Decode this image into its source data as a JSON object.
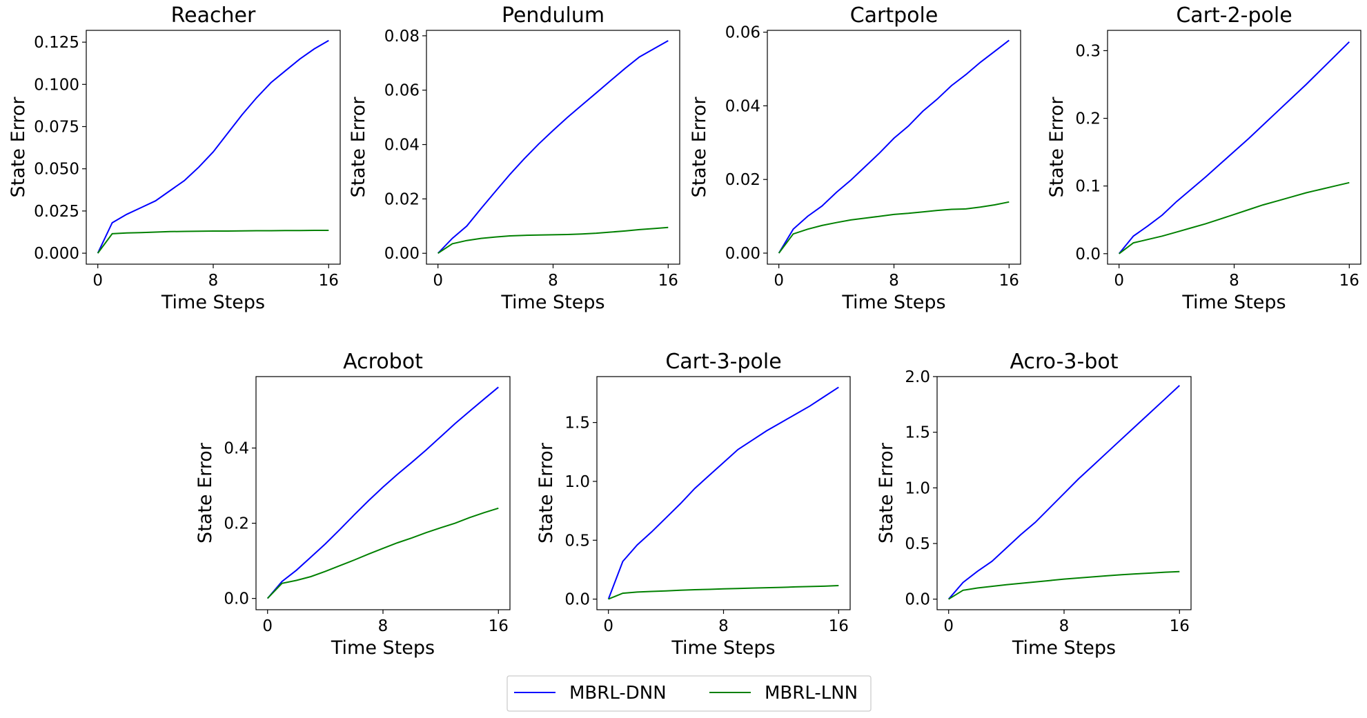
{
  "legend": {
    "placement": "bottom-center",
    "entries": [
      {
        "label": "MBRL-DNN",
        "color": "#0000ff"
      },
      {
        "label": "MBRL-LNN",
        "color": "#008000"
      }
    ]
  },
  "chart_data": [
    {
      "type": "line",
      "title": "Reacher",
      "xlabel": "Time Steps",
      "ylabel": "State Error",
      "xlim": [
        -0.8,
        16.8
      ],
      "ylim": [
        -0.0065,
        0.132
      ],
      "xticks": [
        0,
        8,
        16
      ],
      "xtick_labels": [
        "0",
        "8",
        "16"
      ],
      "yticks": [
        0,
        0.025,
        0.05,
        0.075,
        0.1,
        0.125
      ],
      "ytick_labels": [
        "0.000",
        "0.025",
        "0.050",
        "0.075",
        "0.100",
        "0.125"
      ],
      "x": [
        0,
        1,
        2,
        3,
        4,
        5,
        6,
        7,
        8,
        9,
        10,
        11,
        12,
        13,
        14,
        15,
        16
      ],
      "series": [
        {
          "name": "MBRL-DNN",
          "color": "#0000ff",
          "values": [
            0,
            0.018,
            0.023,
            0.027,
            0.031,
            0.037,
            0.043,
            0.051,
            0.06,
            0.071,
            0.082,
            0.092,
            0.101,
            0.108,
            0.115,
            0.121,
            0.126
          ]
        },
        {
          "name": "MBRL-LNN",
          "color": "#008000",
          "values": [
            0,
            0.0115,
            0.012,
            0.0122,
            0.0125,
            0.0128,
            0.0129,
            0.013,
            0.0131,
            0.0131,
            0.0132,
            0.0133,
            0.0133,
            0.0134,
            0.0134,
            0.0135,
            0.0135
          ]
        }
      ]
    },
    {
      "type": "line",
      "title": "Pendulum",
      "xlabel": "Time Steps",
      "ylabel": "State Error",
      "xlim": [
        -0.8,
        16.8
      ],
      "ylim": [
        -0.004,
        0.082
      ],
      "xticks": [
        0,
        8,
        16
      ],
      "xtick_labels": [
        "0",
        "8",
        "16"
      ],
      "yticks": [
        0,
        0.02,
        0.04,
        0.06,
        0.08
      ],
      "ytick_labels": [
        "0.00",
        "0.02",
        "0.04",
        "0.06",
        "0.08"
      ],
      "x": [
        0,
        1,
        2,
        3,
        4,
        5,
        6,
        7,
        8,
        9,
        10,
        11,
        12,
        13,
        14,
        15,
        16
      ],
      "series": [
        {
          "name": "MBRL-DNN",
          "color": "#0000ff",
          "values": [
            0,
            0.0055,
            0.01,
            0.0165,
            0.0228,
            0.029,
            0.0348,
            0.0402,
            0.0452,
            0.05,
            0.0545,
            0.059,
            0.0635,
            0.068,
            0.0722,
            0.0752,
            0.0782
          ]
        },
        {
          "name": "MBRL-LNN",
          "color": "#008000",
          "values": [
            0,
            0.0035,
            0.0047,
            0.0055,
            0.006,
            0.0064,
            0.0066,
            0.0067,
            0.0068,
            0.0069,
            0.0071,
            0.0074,
            0.0078,
            0.0082,
            0.0087,
            0.0091,
            0.0095
          ]
        }
      ]
    },
    {
      "type": "line",
      "title": "Cartpole",
      "xlabel": "Time Steps",
      "ylabel": "State Error",
      "xlim": [
        -0.8,
        16.8
      ],
      "ylim": [
        -0.003,
        0.0605
      ],
      "xticks": [
        0,
        8,
        16
      ],
      "xtick_labels": [
        "0",
        "8",
        "16"
      ],
      "yticks": [
        0,
        0.02,
        0.04,
        0.06
      ],
      "ytick_labels": [
        "0.00",
        "0.02",
        "0.04",
        "0.06"
      ],
      "x": [
        0,
        1,
        2,
        3,
        4,
        5,
        6,
        7,
        8,
        9,
        10,
        11,
        12,
        13,
        14,
        15,
        16
      ],
      "series": [
        {
          "name": "MBRL-DNN",
          "color": "#0000ff",
          "values": [
            0,
            0.0065,
            0.01,
            0.0128,
            0.0165,
            0.0198,
            0.0235,
            0.0272,
            0.0312,
            0.0345,
            0.0385,
            0.0418,
            0.0455,
            0.0485,
            0.0518,
            0.0548,
            0.0578
          ]
        },
        {
          "name": "MBRL-LNN",
          "color": "#008000",
          "values": [
            0,
            0.0052,
            0.0065,
            0.0075,
            0.0083,
            0.009,
            0.0095,
            0.01,
            0.0105,
            0.0108,
            0.0112,
            0.0116,
            0.0119,
            0.012,
            0.0125,
            0.0131,
            0.0139
          ]
        }
      ]
    },
    {
      "type": "line",
      "title": "Cart-2-pole",
      "xlabel": "Time Steps",
      "ylabel": "State Error",
      "xlim": [
        -0.8,
        16.8
      ],
      "ylim": [
        -0.0155,
        0.33
      ],
      "xticks": [
        0,
        8,
        16
      ],
      "xtick_labels": [
        "0",
        "8",
        "16"
      ],
      "yticks": [
        0,
        0.1,
        0.2,
        0.3
      ],
      "ytick_labels": [
        "0.0",
        "0.1",
        "0.2",
        "0.3"
      ],
      "x": [
        0,
        1,
        2,
        3,
        4,
        5,
        6,
        7,
        8,
        9,
        10,
        11,
        12,
        13,
        14,
        15,
        16
      ],
      "series": [
        {
          "name": "MBRL-DNN",
          "color": "#0000ff",
          "values": [
            0,
            0.026,
            0.041,
            0.057,
            0.077,
            0.095,
            0.113,
            0.132,
            0.151,
            0.17,
            0.19,
            0.21,
            0.23,
            0.25,
            0.271,
            0.292,
            0.313
          ]
        },
        {
          "name": "MBRL-LNN",
          "color": "#008000",
          "values": [
            0,
            0.016,
            0.021,
            0.026,
            0.032,
            0.038,
            0.044,
            0.051,
            0.058,
            0.065,
            0.072,
            0.078,
            0.084,
            0.09,
            0.095,
            0.1,
            0.105
          ]
        }
      ]
    },
    {
      "type": "line",
      "title": "Acrobot",
      "xlabel": "Time Steps",
      "ylabel": "State Error",
      "xlim": [
        -0.8,
        16.8
      ],
      "ylim": [
        -0.03,
        0.59
      ],
      "xticks": [
        0,
        8,
        16
      ],
      "xtick_labels": [
        "0",
        "8",
        "16"
      ],
      "yticks": [
        0,
        0.2,
        0.4
      ],
      "ytick_labels": [
        "0.0",
        "0.2",
        "0.4"
      ],
      "x": [
        0,
        1,
        2,
        3,
        4,
        5,
        6,
        7,
        8,
        9,
        10,
        11,
        12,
        13,
        14,
        15,
        16
      ],
      "series": [
        {
          "name": "MBRL-DNN",
          "color": "#0000ff",
          "values": [
            0,
            0.045,
            0.075,
            0.11,
            0.145,
            0.183,
            0.222,
            0.26,
            0.296,
            0.33,
            0.362,
            0.395,
            0.43,
            0.465,
            0.498,
            0.53,
            0.562
          ]
        },
        {
          "name": "MBRL-LNN",
          "color": "#008000",
          "values": [
            0,
            0.04,
            0.048,
            0.058,
            0.072,
            0.087,
            0.102,
            0.118,
            0.133,
            0.148,
            0.161,
            0.175,
            0.188,
            0.2,
            0.215,
            0.228,
            0.24
          ]
        }
      ]
    },
    {
      "type": "line",
      "title": "Cart-3-pole",
      "xlabel": "Time Steps",
      "ylabel": "State Error",
      "xlim": [
        -0.8,
        16.8
      ],
      "ylim": [
        -0.09,
        1.89
      ],
      "xticks": [
        0,
        8,
        16
      ],
      "xtick_labels": [
        "0",
        "8",
        "16"
      ],
      "yticks": [
        0,
        0.5,
        1.0,
        1.5
      ],
      "ytick_labels": [
        "0.0",
        "0.5",
        "1.0",
        "1.5"
      ],
      "x": [
        0,
        1,
        2,
        3,
        4,
        5,
        6,
        7,
        8,
        9,
        10,
        11,
        12,
        13,
        14,
        15,
        16
      ],
      "series": [
        {
          "name": "MBRL-DNN",
          "color": "#0000ff",
          "values": [
            0,
            0.32,
            0.46,
            0.57,
            0.69,
            0.81,
            0.94,
            1.05,
            1.16,
            1.27,
            1.35,
            1.43,
            1.5,
            1.57,
            1.64,
            1.72,
            1.8
          ]
        },
        {
          "name": "MBRL-LNN",
          "color": "#008000",
          "values": [
            0,
            0.05,
            0.06,
            0.065,
            0.07,
            0.075,
            0.08,
            0.083,
            0.087,
            0.09,
            0.094,
            0.097,
            0.1,
            0.104,
            0.107,
            0.11,
            0.115
          ]
        }
      ]
    },
    {
      "type": "line",
      "title": "Acro-3-bot",
      "xlabel": "Time Steps",
      "ylabel": "State Error",
      "xlim": [
        -0.8,
        16.8
      ],
      "ylim": [
        -0.095,
        2.0
      ],
      "xticks": [
        0,
        8,
        16
      ],
      "xtick_labels": [
        "0",
        "8",
        "16"
      ],
      "yticks": [
        0,
        0.5,
        1.0,
        1.5,
        2.0
      ],
      "ytick_labels": [
        "0.0",
        "0.5",
        "1.0",
        "1.5",
        "2.0"
      ],
      "x": [
        0,
        1,
        2,
        3,
        4,
        5,
        6,
        7,
        8,
        9,
        10,
        11,
        12,
        13,
        14,
        15,
        16
      ],
      "series": [
        {
          "name": "MBRL-DNN",
          "color": "#0000ff",
          "values": [
            0,
            0.15,
            0.25,
            0.34,
            0.46,
            0.58,
            0.69,
            0.82,
            0.95,
            1.08,
            1.2,
            1.32,
            1.44,
            1.56,
            1.68,
            1.8,
            1.92
          ]
        },
        {
          "name": "MBRL-LNN",
          "color": "#008000",
          "values": [
            0,
            0.08,
            0.1,
            0.115,
            0.13,
            0.142,
            0.155,
            0.167,
            0.18,
            0.19,
            0.2,
            0.21,
            0.22,
            0.227,
            0.234,
            0.242,
            0.248
          ]
        }
      ]
    }
  ]
}
